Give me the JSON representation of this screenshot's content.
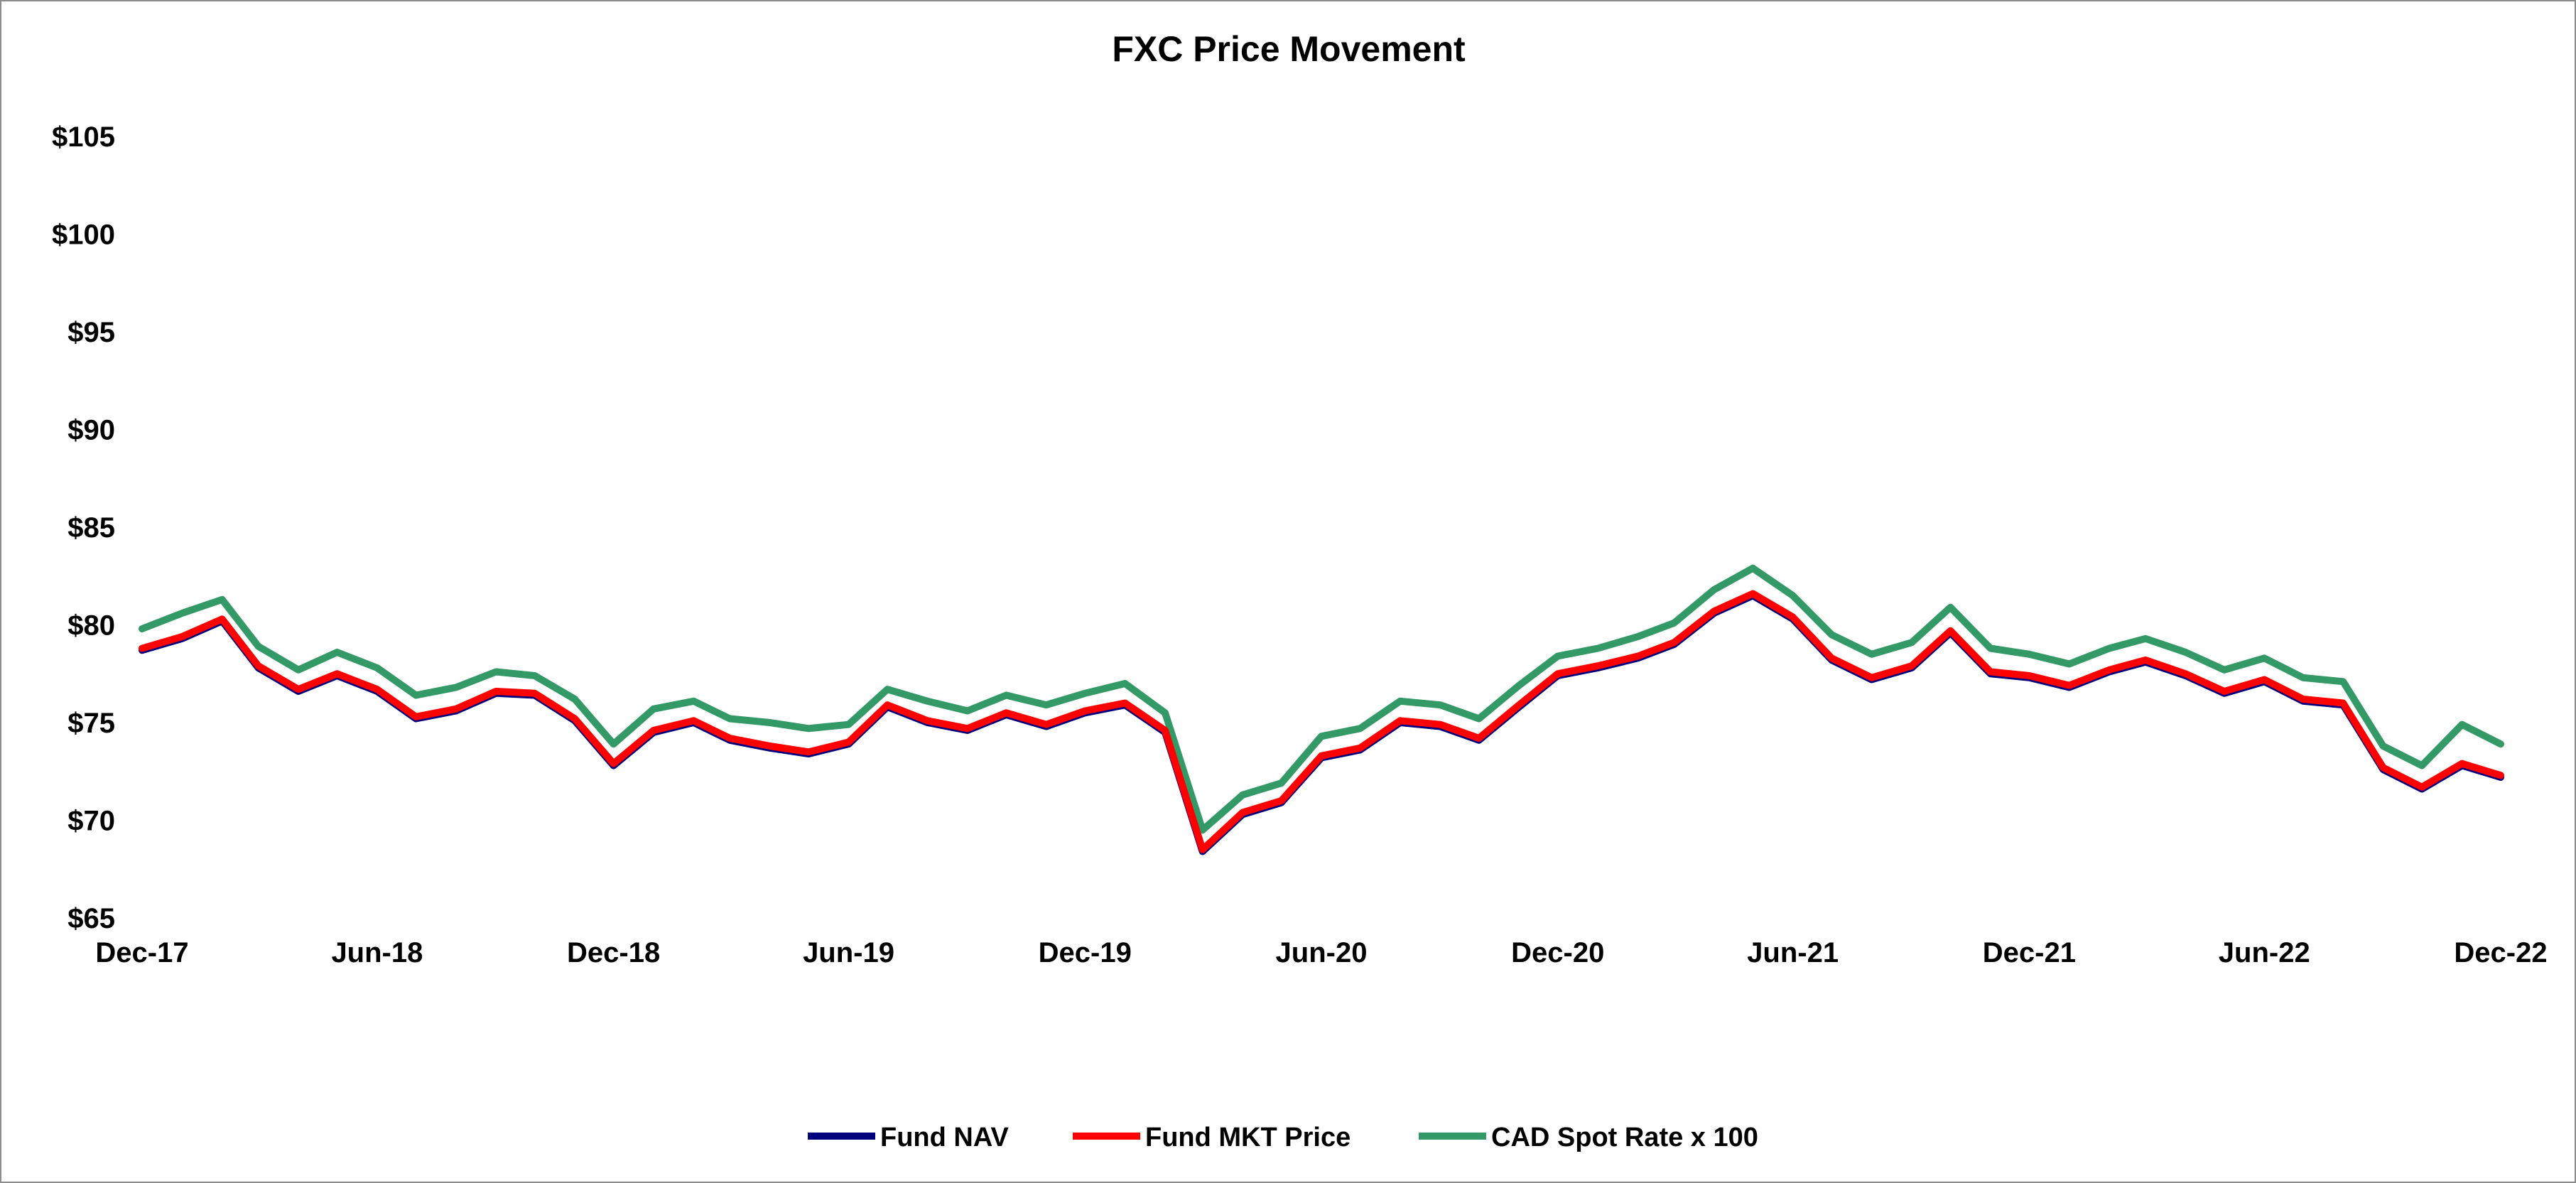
{
  "chart_data": {
    "type": "line",
    "title": "FXC Price Movement",
    "xlabel": "",
    "ylabel": "",
    "x_tick_labels": [
      "Dec-17",
      "Jun-18",
      "Dec-18",
      "Jun-19",
      "Dec-19",
      "Jun-20",
      "Dec-20",
      "Jun-21",
      "Dec-21",
      "Jun-22",
      "Dec-22"
    ],
    "y_tick_labels": [
      "$65",
      "$70",
      "$75",
      "$80",
      "$85",
      "$90",
      "$95",
      "$100",
      "$105"
    ],
    "xlim": [
      "2017-12-01",
      "2022-12-01"
    ],
    "ylim": [
      65,
      105
    ],
    "y_ticks": [
      65,
      70,
      75,
      80,
      85,
      90,
      95,
      100,
      105
    ],
    "grid": false,
    "legend_position": "bottom",
    "x": [
      "2017-12-01",
      "2018-01-01",
      "2018-02-01",
      "2018-03-01",
      "2018-04-01",
      "2018-05-01",
      "2018-06-01",
      "2018-07-01",
      "2018-08-01",
      "2018-09-01",
      "2018-10-01",
      "2018-11-01",
      "2018-12-01",
      "2019-01-01",
      "2019-02-01",
      "2019-03-01",
      "2019-04-01",
      "2019-05-01",
      "2019-06-01",
      "2019-07-01",
      "2019-08-01",
      "2019-09-01",
      "2019-10-01",
      "2019-11-01",
      "2019-12-01",
      "2020-01-01",
      "2020-02-01",
      "2020-03-01",
      "2020-04-01",
      "2020-05-01",
      "2020-06-01",
      "2020-07-01",
      "2020-08-01",
      "2020-09-01",
      "2020-10-01",
      "2020-11-01",
      "2020-12-01",
      "2021-01-01",
      "2021-02-01",
      "2021-03-01",
      "2021-04-01",
      "2021-05-01",
      "2021-06-01",
      "2021-07-01",
      "2021-08-01",
      "2021-09-01",
      "2021-10-01",
      "2021-11-01",
      "2021-12-01",
      "2022-01-01",
      "2022-02-01",
      "2022-03-01",
      "2022-04-01",
      "2022-05-01",
      "2022-06-01",
      "2022-07-01",
      "2022-08-01",
      "2022-09-01",
      "2022-10-01",
      "2022-11-01",
      "2022-12-01"
    ],
    "series": [
      {
        "name": "Fund NAV",
        "color": "#00007F",
        "values": [
          78.7,
          79.3,
          80.2,
          77.8,
          76.6,
          77.4,
          76.6,
          75.2,
          75.6,
          76.5,
          76.4,
          75.1,
          72.8,
          74.5,
          75.0,
          74.1,
          73.7,
          73.4,
          73.9,
          75.8,
          75.0,
          74.6,
          75.4,
          74.8,
          75.5,
          75.9,
          74.5,
          68.4,
          70.3,
          70.9,
          73.2,
          73.6,
          75.0,
          74.8,
          74.1,
          75.8,
          77.4,
          77.8,
          78.3,
          79.0,
          80.6,
          81.5,
          80.3,
          78.2,
          77.2,
          77.8,
          79.6,
          77.5,
          77.3,
          76.8,
          77.6,
          78.1,
          77.4,
          76.5,
          77.1,
          76.1,
          75.9,
          72.6,
          71.6,
          72.8,
          72.2
        ]
      },
      {
        "name": "Fund MKT Price",
        "color": "#FF0000",
        "values": [
          78.8,
          79.4,
          80.3,
          77.9,
          76.7,
          77.5,
          76.7,
          75.3,
          75.7,
          76.6,
          76.5,
          75.2,
          72.9,
          74.6,
          75.1,
          74.2,
          73.8,
          73.5,
          74.0,
          75.9,
          75.1,
          74.7,
          75.5,
          74.9,
          75.6,
          76.0,
          74.6,
          68.5,
          70.4,
          71.0,
          73.3,
          73.7,
          75.1,
          74.9,
          74.2,
          75.9,
          77.5,
          77.9,
          78.4,
          79.1,
          80.7,
          81.6,
          80.4,
          78.3,
          77.3,
          77.9,
          79.7,
          77.6,
          77.4,
          76.9,
          77.7,
          78.2,
          77.5,
          76.6,
          77.2,
          76.2,
          76.0,
          72.7,
          71.7,
          72.9,
          72.3
        ]
      },
      {
        "name": "CAD Spot Rate x 100",
        "color": "#339966",
        "values": [
          79.8,
          80.6,
          81.3,
          78.9,
          77.7,
          78.6,
          77.8,
          76.4,
          76.8,
          77.6,
          77.4,
          76.2,
          73.9,
          75.7,
          76.1,
          75.2,
          75.0,
          74.7,
          74.9,
          76.7,
          76.1,
          75.6,
          76.4,
          75.9,
          76.5,
          77.0,
          75.5,
          69.5,
          71.3,
          71.9,
          74.3,
          74.7,
          76.1,
          75.9,
          75.2,
          76.9,
          78.4,
          78.8,
          79.4,
          80.1,
          81.8,
          82.9,
          81.5,
          79.5,
          78.5,
          79.1,
          80.9,
          78.8,
          78.5,
          78.0,
          78.8,
          79.3,
          78.6,
          77.7,
          78.3,
          77.3,
          77.1,
          73.8,
          72.8,
          74.9,
          73.9
        ]
      }
    ]
  }
}
